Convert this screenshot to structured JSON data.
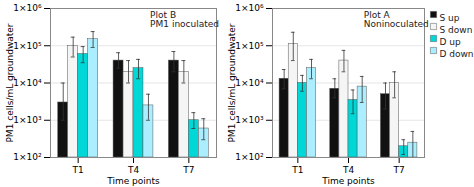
{
  "chart_data": [
    {
      "type": "bar",
      "title": "Plot B\nPM1 inoculated",
      "xlabel": "Time points",
      "ylabel": "PM1 cells/mL groundwater",
      "categories": [
        "T1",
        "T4",
        "T7"
      ],
      "series": [
        {
          "name": "S up",
          "color": "#111111",
          "values": [
            3000,
            40000,
            40000
          ],
          "errors_up": [
            7000,
            25000,
            30000
          ],
          "errors_down": [
            2000,
            15000,
            20000
          ]
        },
        {
          "name": "S down",
          "color": "#f5f5f5",
          "values": [
            100000,
            20000,
            20000
          ],
          "errors_up": [
            70000,
            20000,
            20000
          ],
          "errors_down": [
            50000,
            10000,
            10000
          ]
        },
        {
          "name": "D up",
          "color": "#00d8d8",
          "values": [
            60000,
            25000,
            1000
          ],
          "errors_up": [
            35000,
            18000,
            600
          ],
          "errors_down": [
            25000,
            12000,
            400
          ]
        },
        {
          "name": "D down",
          "color": "#aaeeff",
          "values": [
            150000,
            2500,
            600
          ],
          "errors_up": [
            90000,
            2500,
            500
          ],
          "errors_down": [
            60000,
            1500,
            300
          ]
        }
      ],
      "ylim": [
        100,
        1000000
      ],
      "yticks": [
        {
          "value": 100,
          "label": "1×10²"
        },
        {
          "value": 1000,
          "label": "1×10³"
        },
        {
          "value": 10000,
          "label": "1×10⁴"
        },
        {
          "value": 100000,
          "label": "1×10⁵"
        },
        {
          "value": 1000000,
          "label": "1×10⁶"
        }
      ],
      "log": "y",
      "grid": true
    },
    {
      "type": "bar",
      "title": "Plot A\nNoninoculated",
      "xlabel": "Time points",
      "ylabel": "PM1 cells/mL groundwater",
      "categories": [
        "T1",
        "T4",
        "T7"
      ],
      "series": [
        {
          "name": "S up",
          "color": "#111111",
          "values": [
            13000,
            7000,
            5000
          ],
          "errors_up": [
            10000,
            6000,
            5000
          ],
          "errors_down": [
            6000,
            3000,
            3000
          ]
        },
        {
          "name": "S down",
          "color": "#f5f5f5",
          "values": [
            110000,
            40000,
            10000
          ],
          "errors_up": [
            120000,
            35000,
            10000
          ],
          "errors_down": [
            70000,
            20000,
            6000
          ]
        },
        {
          "name": "D up",
          "color": "#00d8d8",
          "values": [
            10000,
            3500,
            200
          ],
          "errors_up": [
            6000,
            3000,
            100
          ],
          "errors_down": [
            4000,
            2000,
            80
          ]
        },
        {
          "name": "D down",
          "color": "#aaeeff",
          "values": [
            25000,
            8000,
            250
          ],
          "errors_up": [
            18000,
            7000,
            250
          ],
          "errors_down": [
            12000,
            5000,
            150
          ]
        }
      ],
      "ylim": [
        100,
        1000000
      ],
      "yticks": [
        {
          "value": 100,
          "label": "1×10²"
        },
        {
          "value": 1000,
          "label": "1×10³"
        },
        {
          "value": 10000,
          "label": "1×10⁴"
        },
        {
          "value": 100000,
          "label": "1×10⁵"
        },
        {
          "value": 1000000,
          "label": "1×10⁶"
        }
      ],
      "log": "y",
      "grid": true,
      "legend": "upper right"
    }
  ]
}
